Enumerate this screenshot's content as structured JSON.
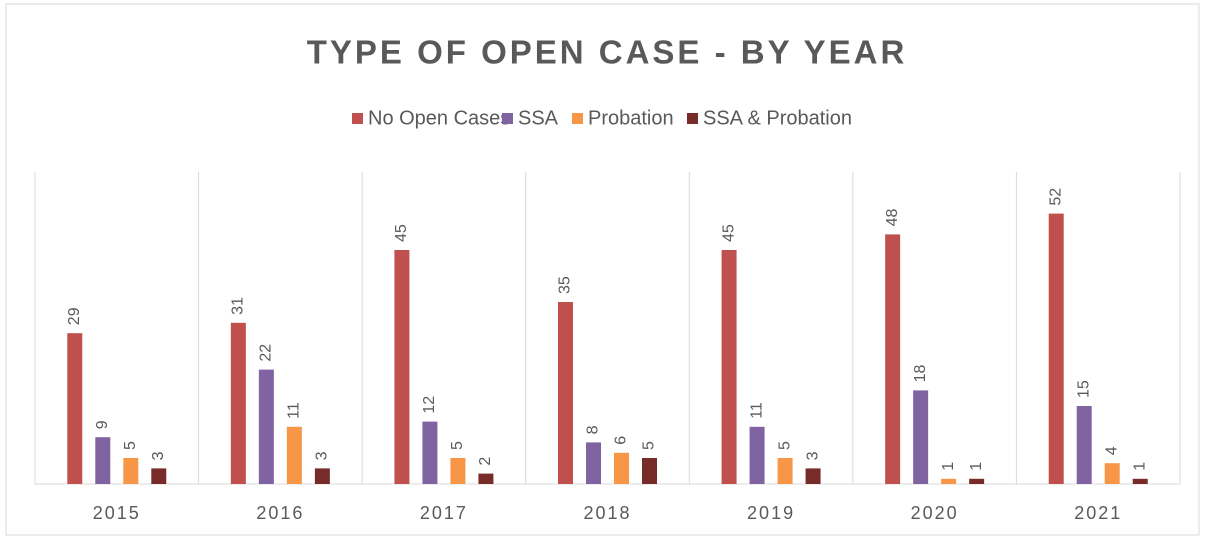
{
  "chart_data": {
    "type": "bar",
    "title": "TYPE OF OPEN CASE - BY YEAR",
    "categories": [
      "2015",
      "2016",
      "2017",
      "2018",
      "2019",
      "2020",
      "2021"
    ],
    "series": [
      {
        "name": "No Open Cases",
        "color": "#c0504d",
        "values": [
          29,
          31,
          45,
          35,
          45,
          48,
          52
        ]
      },
      {
        "name": "SSA",
        "color": "#8064a2",
        "values": [
          9,
          22,
          12,
          8,
          11,
          18,
          15
        ]
      },
      {
        "name": "Probation",
        "color": "#f79646",
        "values": [
          5,
          11,
          5,
          6,
          5,
          1,
          4
        ]
      },
      {
        "name": "SSA & Probation",
        "color": "#772c2a",
        "values": [
          3,
          3,
          2,
          5,
          3,
          1,
          1
        ]
      }
    ],
    "ylim": [
      0,
      60
    ],
    "legend": "top"
  }
}
